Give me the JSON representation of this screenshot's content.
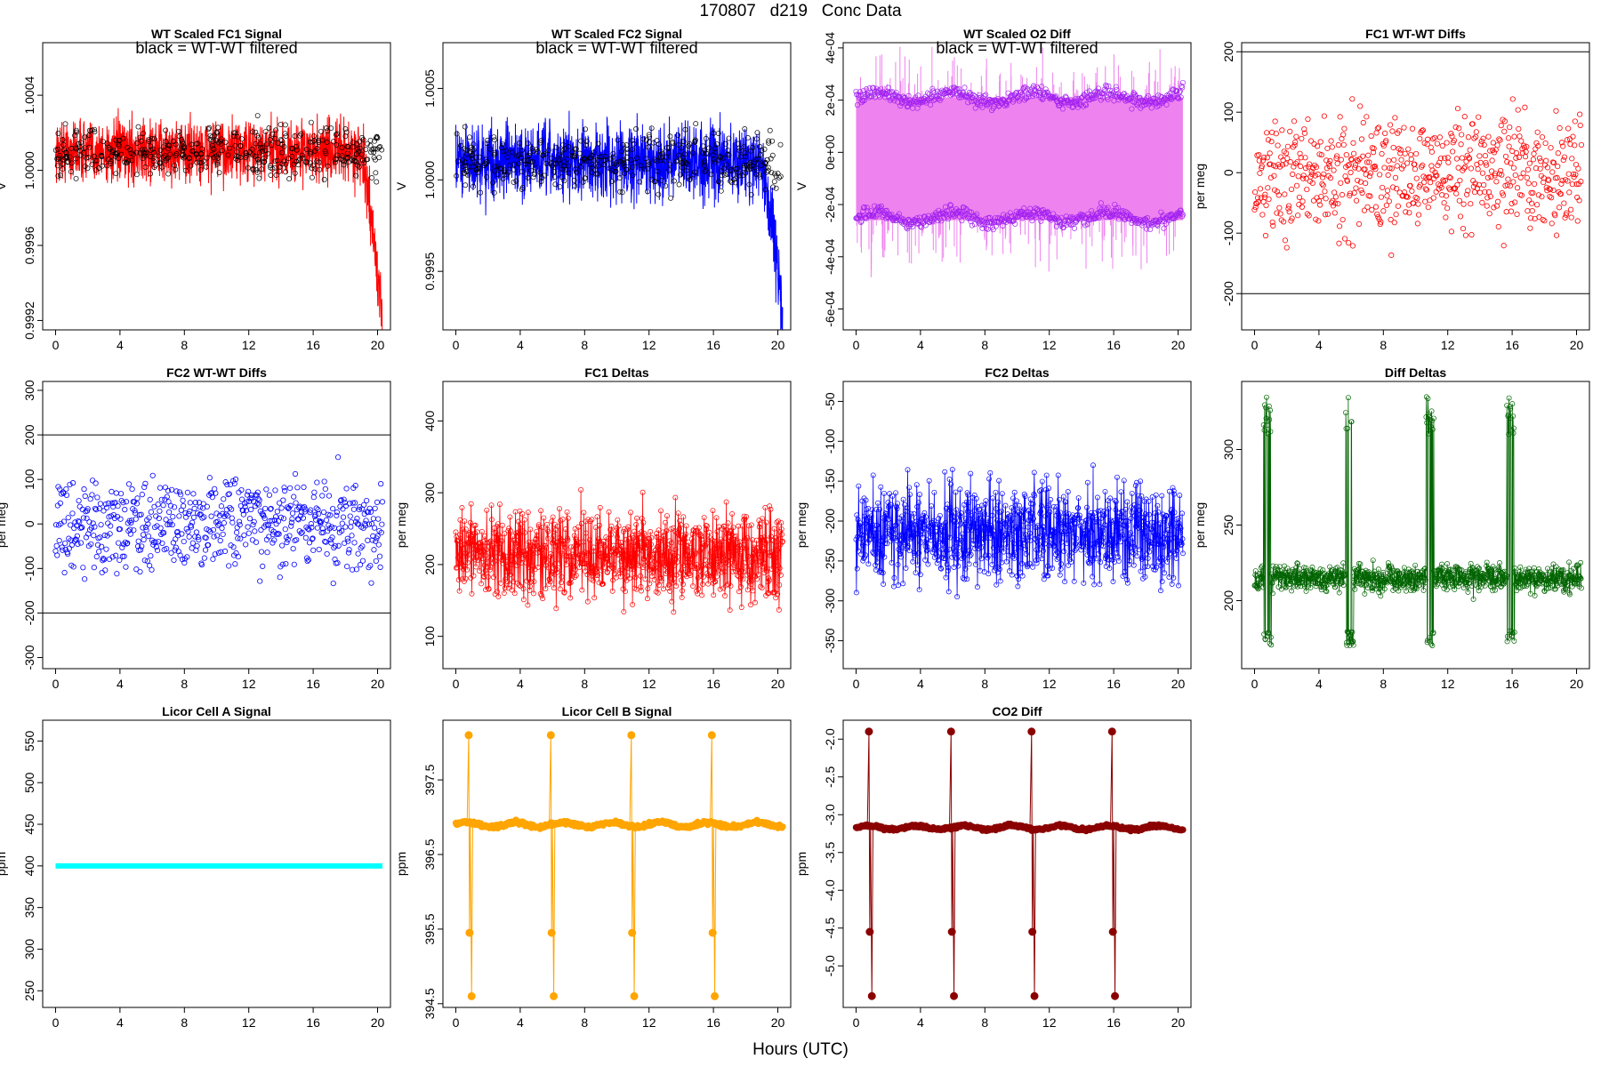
{
  "page": {
    "title": "170807   d219   Conc Data",
    "xlabel": "Hours (UTC)"
  },
  "chart_data": [
    {
      "type": "line",
      "title": "WT Scaled FC1 Signal",
      "note": "black = WT-WT filtered",
      "xlabel": "",
      "ylabel": "V",
      "xlim": [
        -0.8,
        20.8
      ],
      "ylim": [
        0.99915,
        1.00068
      ],
      "x_ticks": [
        0,
        4,
        8,
        12,
        16,
        20
      ],
      "x_tick_labels": [
        "0",
        "4",
        "8",
        "12",
        "16",
        "20"
      ],
      "y_ticks": [
        0.9992,
        0.9996,
        1.0,
        1.0004
      ],
      "y_tick_labels": [
        "0.9992",
        "0.9996",
        "1.0000",
        "1.0004"
      ],
      "color": "#ff0000",
      "series": [
        {
          "name": "signal",
          "style": "noise",
          "x_range": [
            0,
            20.3
          ],
          "y_center": 1.0001,
          "y_spread": 0.00018,
          "y_end": 0.99915,
          "color": "#ff0000"
        },
        {
          "name": "WT-WT filtered",
          "style": "circles",
          "color": "#000000"
        }
      ]
    },
    {
      "type": "line",
      "title": "WT Scaled FC2 Signal",
      "note": "black = WT-WT filtered",
      "xlabel": "",
      "ylabel": "V",
      "xlim": [
        -0.8,
        20.8
      ],
      "ylim": [
        0.99918,
        1.00075
      ],
      "x_ticks": [
        0,
        4,
        8,
        12,
        16,
        20
      ],
      "x_tick_labels": [
        "0",
        "4",
        "8",
        "12",
        "16",
        "20"
      ],
      "y_ticks": [
        0.9995,
        1.0,
        1.0005
      ],
      "y_tick_labels": [
        "0.9995",
        "1.0000",
        "1.0005"
      ],
      "color": "#0000ff",
      "series": [
        {
          "name": "signal",
          "style": "noise",
          "x_range": [
            0,
            20.3
          ],
          "y_center": 1.0001,
          "y_spread": 0.00022,
          "y_end": 0.99925,
          "color": "#0000ff"
        },
        {
          "name": "WT-WT filtered",
          "style": "circles",
          "color": "#000000"
        }
      ]
    },
    {
      "type": "line",
      "title": "WT Scaled O2 Diff",
      "note": "black = WT-WT filtered",
      "xlabel": "",
      "ylabel": "V",
      "xlim": [
        -0.8,
        20.8
      ],
      "ylim": [
        -0.00068,
        0.00042
      ],
      "x_ticks": [
        0,
        4,
        8,
        12,
        16,
        20
      ],
      "x_tick_labels": [
        "0",
        "4",
        "8",
        "12",
        "16",
        "20"
      ],
      "y_ticks": [
        -0.0006,
        -0.0004,
        -0.0002,
        0,
        0.0002,
        0.0004
      ],
      "y_tick_labels": [
        "-6e-04",
        "-4e-04",
        "-2e-04",
        "0e+00",
        "2e-04",
        "4e-04"
      ],
      "color": "#ee82ee",
      "band": {
        "low": -0.00026,
        "high": 0.00021
      },
      "series": [
        {
          "name": "upper level",
          "style": "circles",
          "y_level": 0.00021,
          "color": "#a020f0"
        },
        {
          "name": "lower level",
          "style": "circles",
          "y_level": -0.00025,
          "color": "#a020f0"
        }
      ]
    },
    {
      "type": "scatter",
      "title": "FC1 WT-WT Diffs",
      "xlabel": "",
      "ylabel": "per meg",
      "xlim": [
        -0.8,
        20.8
      ],
      "ylim": [
        -260,
        215
      ],
      "x_ticks": [
        0,
        4,
        8,
        12,
        16,
        20
      ],
      "x_tick_labels": [
        "0",
        "4",
        "8",
        "12",
        "16",
        "20"
      ],
      "y_ticks": [
        -200,
        -100,
        0,
        100,
        200
      ],
      "y_tick_labels": [
        "-200",
        "-100",
        "0",
        "100",
        "200"
      ],
      "hlines": [
        200,
        -200
      ],
      "color": "#ff0000",
      "series": [
        {
          "name": "diffs",
          "style": "scatter",
          "y_center": 0,
          "y_spread": 75,
          "color": "#ff0000"
        }
      ]
    },
    {
      "type": "scatter",
      "title": "FC2 WT-WT Diffs",
      "xlabel": "",
      "ylabel": "per meg",
      "xlim": [
        -0.8,
        20.8
      ],
      "ylim": [
        -325,
        320
      ],
      "x_ticks": [
        0,
        4,
        8,
        12,
        16,
        20
      ],
      "x_tick_labels": [
        "0",
        "4",
        "8",
        "12",
        "16",
        "20"
      ],
      "y_ticks": [
        -300,
        -200,
        -100,
        0,
        100,
        200,
        300
      ],
      "y_tick_labels": [
        "-300",
        "-200",
        "-100",
        "0",
        "100",
        "200",
        "300"
      ],
      "hlines": [
        200,
        -200
      ],
      "color": "#0000ff",
      "series": [
        {
          "name": "diffs",
          "style": "scatter",
          "y_center": 0,
          "y_spread": 85,
          "color": "#0000ff"
        }
      ]
    },
    {
      "type": "line",
      "title": "FC1 Deltas",
      "xlabel": "",
      "ylabel": "per meg",
      "xlim": [
        -0.8,
        20.8
      ],
      "ylim": [
        55,
        455
      ],
      "x_ticks": [
        0,
        4,
        8,
        12,
        16,
        20
      ],
      "x_tick_labels": [
        "0",
        "4",
        "8",
        "12",
        "16",
        "20"
      ],
      "y_ticks": [
        100,
        200,
        300,
        400
      ],
      "y_tick_labels": [
        "100",
        "200",
        "300",
        "400"
      ],
      "color": "#ff0000",
      "series": [
        {
          "name": "deltas",
          "style": "linepoints",
          "y_center": 215,
          "y_spread": 55,
          "color": "#ff0000"
        }
      ]
    },
    {
      "type": "line",
      "title": "FC2 Deltas",
      "xlabel": "",
      "ylabel": "per meg",
      "xlim": [
        -0.8,
        20.8
      ],
      "ylim": [
        -385,
        -25
      ],
      "x_ticks": [
        0,
        4,
        8,
        12,
        16,
        20
      ],
      "x_tick_labels": [
        "0",
        "4",
        "8",
        "12",
        "16",
        "20"
      ],
      "y_ticks": [
        -350,
        -300,
        -250,
        -200,
        -150,
        -100,
        -50
      ],
      "y_tick_labels": [
        "-350",
        "-300",
        "-250",
        "-200",
        "-150",
        "-100",
        "-50"
      ],
      "color": "#0000ff",
      "series": [
        {
          "name": "deltas",
          "style": "linepoints",
          "y_center": -215,
          "y_spread": 55,
          "color": "#0000ff"
        }
      ]
    },
    {
      "type": "line",
      "title": "Diff Deltas",
      "xlabel": "",
      "ylabel": "per meg",
      "xlim": [
        -0.8,
        20.8
      ],
      "ylim": [
        155,
        345
      ],
      "x_ticks": [
        0,
        4,
        8,
        12,
        16,
        20
      ],
      "x_tick_labels": [
        "0",
        "4",
        "8",
        "12",
        "16",
        "20"
      ],
      "y_ticks": [
        200,
        250,
        300
      ],
      "y_tick_labels": [
        "200",
        "250",
        "300"
      ],
      "color": "#006400",
      "spikes": [
        0.8,
        5.9,
        10.9,
        15.9
      ],
      "series": [
        {
          "name": "deltas",
          "style": "linepoints",
          "y_center": 215,
          "y_spread": 8,
          "color": "#006400",
          "spike_high": 335,
          "spike_low": 170
        }
      ]
    },
    {
      "type": "line",
      "title": "Licor Cell A Signal",
      "xlabel": "",
      "ylabel": "ppm",
      "xlim": [
        -0.8,
        20.8
      ],
      "ylim": [
        230,
        575
      ],
      "x_ticks": [
        0,
        4,
        8,
        12,
        16,
        20
      ],
      "x_tick_labels": [
        "0",
        "4",
        "8",
        "12",
        "16",
        "20"
      ],
      "y_ticks": [
        250,
        300,
        350,
        400,
        450,
        500,
        550
      ],
      "y_tick_labels": [
        "250",
        "300",
        "350",
        "400",
        "450",
        "500",
        "550"
      ],
      "color": "#00ffff",
      "series": [
        {
          "name": "cell A",
          "style": "flat",
          "y_level": 400,
          "color": "#00ffff"
        }
      ]
    },
    {
      "type": "line",
      "title": "Licor Cell B Signal",
      "xlabel": "",
      "ylabel": "ppm",
      "xlim": [
        -0.8,
        20.8
      ],
      "ylim": [
        394.45,
        398.3
      ],
      "x_ticks": [
        0,
        4,
        8,
        12,
        16,
        20
      ],
      "x_tick_labels": [
        "0",
        "4",
        "8",
        "12",
        "16",
        "20"
      ],
      "y_ticks": [
        394.5,
        395.5,
        396.5,
        397.5
      ],
      "y_tick_labels": [
        "394.5",
        "395.5",
        "396.5",
        "397.5"
      ],
      "color": "#ffa500",
      "spikes": [
        0.8,
        5.9,
        10.9,
        15.9
      ],
      "series": [
        {
          "name": "cell B",
          "style": "steady",
          "y_center": 396.9,
          "y_spread": 0.05,
          "color": "#ffa500",
          "spike_high": 398.1,
          "spike_low": 394.6,
          "spike_mid": 395.45
        }
      ]
    },
    {
      "type": "line",
      "title": "CO2 Diff",
      "xlabel": "",
      "ylabel": "ppm",
      "xlim": [
        -0.8,
        20.8
      ],
      "ylim": [
        -5.55,
        -1.75
      ],
      "x_ticks": [
        0,
        4,
        8,
        12,
        16,
        20
      ],
      "x_tick_labels": [
        "0",
        "4",
        "8",
        "12",
        "16",
        "20"
      ],
      "y_ticks": [
        -5.0,
        -4.5,
        -4.0,
        -3.5,
        -3.0,
        -2.5,
        -2.0
      ],
      "y_tick_labels": [
        "-5.0",
        "-4.5",
        "-4.0",
        "-3.5",
        "-3.0",
        "-2.5",
        "-2.0"
      ],
      "color": "#8b0000",
      "spikes": [
        0.8,
        5.9,
        10.9,
        15.9
      ],
      "series": [
        {
          "name": "CO2 diff",
          "style": "steady",
          "y_center": -3.17,
          "y_spread": 0.04,
          "color": "#8b0000",
          "spike_high": -1.9,
          "spike_low": -5.4,
          "spike_mid": -4.55
        }
      ]
    }
  ]
}
